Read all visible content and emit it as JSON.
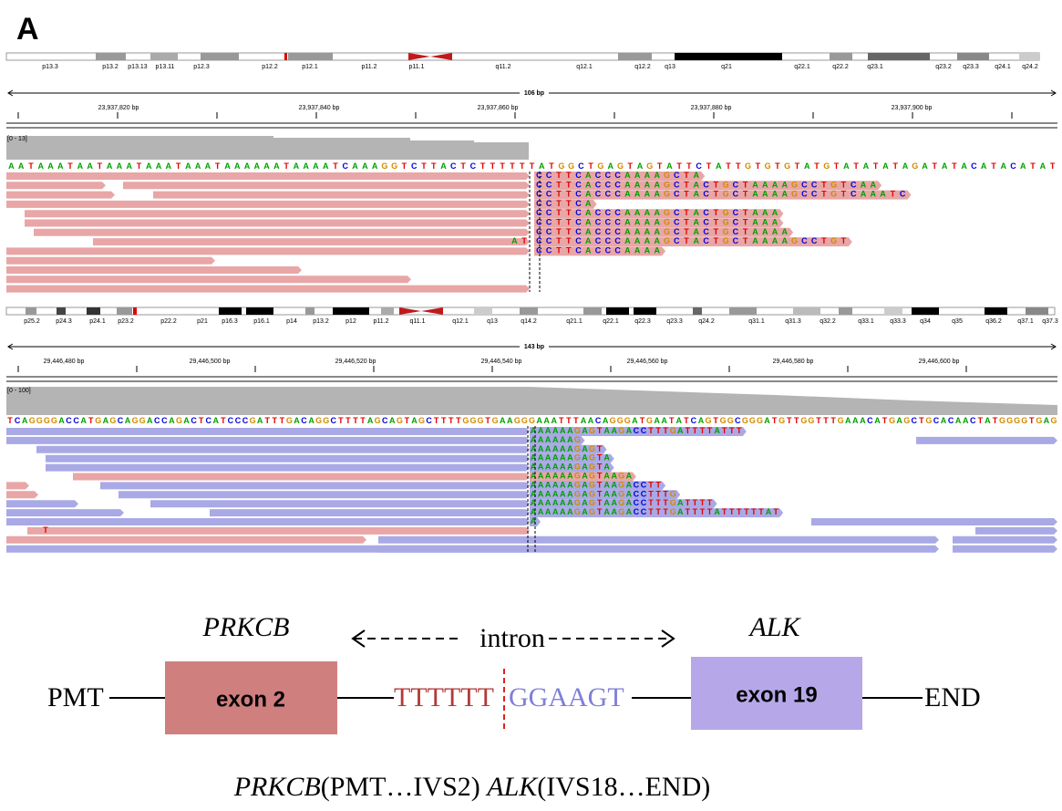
{
  "panel_label": "A",
  "igv_top": {
    "cytobands": [
      "p13.3",
      "p13.2",
      "p13.13",
      "p13.11",
      "p12.3",
      "p12.2",
      "p12.1",
      "p11.2",
      "p11.1",
      "q11.2",
      "q12.1",
      "q12.2",
      "q13",
      "q21",
      "q22.1",
      "q22.2",
      "q23.1",
      "q23.2",
      "q23.3",
      "q24.1",
      "q24.2"
    ],
    "range": "106 bp",
    "positions": [
      "23,937,820 bp",
      "23,937,840 bp",
      "23,937,860 bp",
      "23,937,880 bp",
      "23,937,900 bp"
    ],
    "coverage_range": "[0 - 13]",
    "reference": "AATAAATAATAAATAAATAAATAAAAAATAAAATCAAAGGTCTTACTCTTTTTTATGGCTGAGTAGTATTCTATTGTGTGTATGTATATATAGATATACATACATAT",
    "soft_clips": [
      "CCTTCACCCAAAAGCTA",
      "CCTTCACCCAAAAGCTACTGCTAAAAGCCTGTCAA",
      "CCTTCACCCAAAAGCTACTGCTAAAAGCCTGTCAAATC",
      "CCTTCA",
      "CCTTCACCCAAAAGCTACTGCTAAA",
      "CCTTCACCCAAAAGCTACTGCTAAA",
      "CCTTCACCCAAAAGCTACTGCTAAAA",
      "CCTTCACCCAAAAGCTACTGCTAAAAGCCTGT",
      "CCTTCACCCAAAA"
    ],
    "mismatches": [
      "AT"
    ]
  },
  "igv_bottom": {
    "cytobands": [
      "p25.2",
      "p24.3",
      "p24.1",
      "p23.2",
      "p22.2",
      "p21",
      "p16.3",
      "p16.1",
      "p14",
      "p13.2",
      "p12",
      "p11.2",
      "q11.1",
      "q12.1",
      "q13",
      "q14.2",
      "q21.1",
      "q22.1",
      "q22.3",
      "q23.3",
      "q24.2",
      "q31.1",
      "q31.3",
      "q32.2",
      "q33.1",
      "q33.3",
      "q34",
      "q35",
      "q36.2",
      "q37.1",
      "q37.3"
    ],
    "range": "143 bp",
    "positions": [
      "29,446,480 bp",
      "29,446,500 bp",
      "29,446,520 bp",
      "29,446,540 bp",
      "29,446,560 bp",
      "29,446,580 bp",
      "29,446,600 bp"
    ],
    "coverage_range": "[0 - 100]",
    "reference": "TCAGGGGACCATGAGCAGGACCAGACTCATCCCGATTTGACAGGCTTTTAGCAGTAGCTTTTGGGTGAAGGGAAATTTAACAGGGATGAATATCAGTGGCGGGATGTTGGTTTGAAACATGAGCTGCACAACTATGGGGTGAG",
    "soft_clips": [
      "AAAAAAGAGTAAGACCTTTGATTTTATTT",
      "AAAAAAG",
      "AAAAAAGAGT",
      "AAAAAAGAGTA",
      "AAAAAAGAGTA",
      "AAAAAAGAGTAAGA",
      "AAAAAAGAGTAAGACCTT",
      "AAAAAAGAGTAAGACCTTTG",
      "AAAAAAGAGTAAGACCTTTGATTTT",
      "AAAAAAGAGTAAGACCTTTGATTTTATTTTTTAT",
      "A"
    ],
    "mismatches": [
      "T"
    ]
  },
  "diagram": {
    "gene_left": "PRKCB",
    "intron": "intron",
    "gene_right": "ALK",
    "start": "PMT",
    "exon_left": "exon 2",
    "seq_left": "TTTTTT",
    "seq_right": "GGAAGT",
    "exon_right": "exon 19",
    "end": "END",
    "fusion": {
      "gene_left": "PRKCB",
      "range_left": "(PMT…IVS2) ",
      "gene_right": "ALK",
      "range_right": "(IVS18…END)"
    }
  }
}
